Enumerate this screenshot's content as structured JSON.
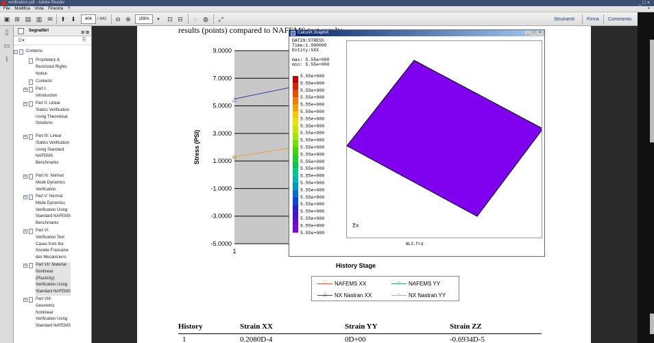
{
  "window": {
    "title": "verification.pdf - Adobe Reader"
  },
  "menu": {
    "items": [
      "File",
      "Modifica",
      "Vista",
      "Finestra",
      "?"
    ],
    "close_glyph": "×"
  },
  "toolbar": {
    "page_current": "404",
    "page_total": "/ 442",
    "zoom": "159%",
    "links": {
      "tools": "Strumenti",
      "sign": "Firma",
      "comment": "Commento"
    }
  },
  "bookmarks": {
    "title": "Segnalibri",
    "items": [
      {
        "label": "Contents",
        "exp": "⊟",
        "selected": false
      },
      {
        "label": "Proprietary &\nRestricted Rights\nNotice",
        "exp": "",
        "selected": false
      },
      {
        "label": "Contents",
        "exp": "",
        "selected": false
      },
      {
        "label": "Part I:\nIntroduction",
        "exp": "⊞",
        "selected": false
      },
      {
        "label": "Part II:  Linear\nStatics Verification\nUsing Theoretical\nSolutions",
        "exp": "⊞",
        "selected": false
      },
      {
        "label": "Part III:  Linear\nStatics Verification\nUsing Standard\nNAFEMS\nBenchmarks",
        "exp": "⊞",
        "selected": false
      },
      {
        "label": "Part IV:  Normal\nMode Dynamics\nVerification",
        "exp": "⊞",
        "selected": false
      },
      {
        "label": "Part V:  Normal\nMode Dynamics\nVerification Using\nStandard NAFEMS\nBenchmarks",
        "exp": "⊞",
        "selected": false
      },
      {
        "label": "Part VI:\nVerification Test\nCases from the\nSociete Francaise\ndes Mecaniciens",
        "exp": "⊞",
        "selected": false
      },
      {
        "label": "Part VII:  Material\nNonlinear\n(Plasticity)\nVerification Using\nStandard NAFEMS",
        "exp": "⊞",
        "selected": true
      },
      {
        "label": "Part VIII:\nGeometric\nNonlinear\nVerification Using\nStandard NAFEMS",
        "exp": "⊞",
        "selected": false
      }
    ]
  },
  "document": {
    "heading_text": "results (points) compared to NAFEMS test results",
    "table": {
      "headers": [
        "History",
        "Strain XX",
        "Strain YY",
        "Strain ZZ"
      ],
      "row1": [
        "1",
        "0.2080D-4",
        "0D+00",
        "-0.6934D-5"
      ]
    }
  },
  "chart_data": {
    "type": "line",
    "xlabel": "History Stage",
    "ylabel": "Stress (PSI)",
    "ylim": [
      -5,
      9
    ],
    "ytick_labels": [
      "9.0000",
      "7.0000",
      "5.0000",
      "3.0000",
      "1.0000",
      "-1.0000",
      "-3.0000",
      "-5.0000"
    ],
    "xtick_labels": [
      "1"
    ],
    "series": [
      {
        "name": "NAFEMS XX",
        "color": "#e05a3a",
        "marker": "□",
        "x": [
          1
        ],
        "y": [
          1.3
        ]
      },
      {
        "name": "NAFEMS YY",
        "color": "#3aa85a",
        "marker": "◇",
        "x": [
          1
        ],
        "y": [
          1.3
        ]
      },
      {
        "name": "NX Nastran XX",
        "color": "#3a3aa0",
        "marker": "△",
        "x": [
          1,
          1.55
        ],
        "y": [
          5.5,
          6.4
        ]
      },
      {
        "name": "NX Nastran YY",
        "color": "#f0a040",
        "marker": "+",
        "x": [
          1,
          1.55
        ],
        "y": [
          1.3,
          2.0
        ]
      }
    ]
  },
  "popup": {
    "title": "CalculiX GraphiX",
    "info": "DAT29:STRESS\nTime:1.000000\nEntity:SXX\n\nmax: 5.55e+000\nmin: 5.55e+000",
    "legend_value": "5.55e+000",
    "legend_colors": [
      "#c80000",
      "#e02000",
      "#f04800",
      "#f87800",
      "#f8a000",
      "#f8c800",
      "#f0e000",
      "#c8e800",
      "#a0e800",
      "#70e000",
      "#40d800",
      "#20d020",
      "#00c850",
      "#00c888",
      "#00b8b0",
      "#0098c8",
      "#0070d8",
      "#0048e0",
      "#2020e0",
      "#4810e0",
      "#6808e0",
      "#8000e0"
    ],
    "axis_label": "z̅\nx",
    "file_name": "NL3.frd",
    "fill_color": "#8000f0"
  }
}
